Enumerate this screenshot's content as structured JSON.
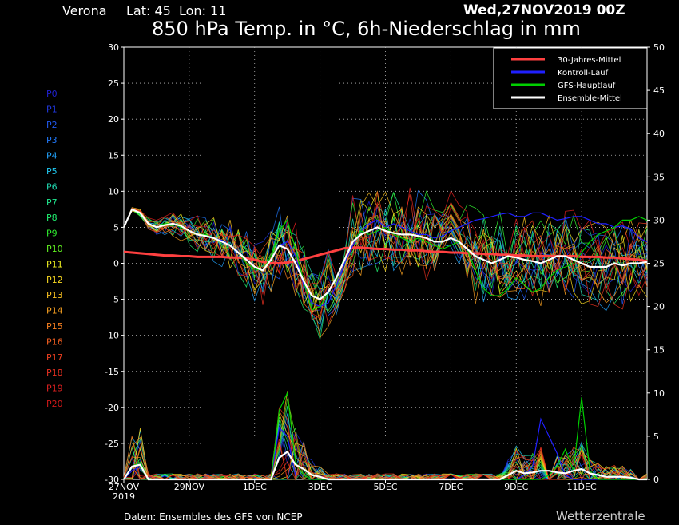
{
  "header": {
    "location": "Verona",
    "coords": "Lat: 45  Lon: 11",
    "run": "Wed,27NOV2019 00Z",
    "title": "850 hPa Temp. in °C, 6h-Niederschlag in mm"
  },
  "footer": {
    "source": "Daten: Ensembles des GFS von NCEP",
    "brand": "Wetterzentrale"
  },
  "members": [
    "P0",
    "P1",
    "P2",
    "P3",
    "P4",
    "P5",
    "P6",
    "P7",
    "P8",
    "P9",
    "P10",
    "P11",
    "P12",
    "P13",
    "P14",
    "P15",
    "P16",
    "P17",
    "P18",
    "P19",
    "P20"
  ],
  "member_colors": [
    "#2020d0",
    "#2038e0",
    "#2058f0",
    "#2078f8",
    "#20a0f8",
    "#20c8f0",
    "#20d8b0",
    "#20e890",
    "#20f070",
    "#30f030",
    "#60f020",
    "#f0f020",
    "#f8d820",
    "#f8c020",
    "#f8a020",
    "#f88020",
    "#f86020",
    "#f04020",
    "#e83020",
    "#e02020",
    "#d01818"
  ],
  "colors": {
    "climatology": "#ff4040",
    "control": "#2020ff",
    "gfs_main": "#00d000",
    "ensemble_mean": "#ffffff"
  },
  "chart_data": {
    "type": "line",
    "title": "850 hPa Temp. in °C, 6h-Niederschlag in mm",
    "x_tick_labels": [
      "27NOV",
      "29NOV",
      "1DEC",
      "3DEC",
      "5DEC",
      "7DEC",
      "9DEC",
      "11DEC"
    ],
    "x_tick_year": "2019",
    "ylim_left": [
      -30,
      30
    ],
    "ylim_right": [
      0,
      50
    ],
    "y_left_ticks": [
      30,
      25,
      20,
      15,
      10,
      5,
      0,
      -5,
      -10,
      -15,
      -20,
      -25,
      -30
    ],
    "y_right_ticks": [
      50,
      45,
      40,
      35,
      30,
      25,
      20,
      15,
      10,
      5,
      0
    ],
    "grid": true,
    "legend": {
      "position": "top-right",
      "entries": [
        "30-Jahres-Mittel",
        "Kontroll-Lauf",
        "GFS-Hauptlauf",
        "Ensemble-Mittel"
      ]
    },
    "x_days": [
      0,
      0.25,
      0.5,
      0.75,
      1,
      1.25,
      1.5,
      1.75,
      2,
      2.25,
      2.5,
      2.75,
      3,
      3.25,
      3.5,
      3.75,
      4,
      4.25,
      4.5,
      4.75,
      5,
      5.25,
      5.5,
      5.75,
      6,
      6.25,
      6.5,
      6.75,
      7,
      7.25,
      7.5,
      7.75,
      8,
      8.25,
      8.5,
      8.75,
      9,
      9.25,
      9.5,
      9.75,
      10,
      10.25,
      10.5,
      10.75,
      11,
      11.25,
      11.5,
      11.75,
      12,
      12.25,
      12.5,
      12.75,
      13,
      13.25,
      13.5,
      13.75,
      14,
      14.25,
      14.5,
      14.75,
      15,
      15.25,
      15.5,
      15.75,
      16
    ],
    "series": [
      {
        "name": "30-Jahres-Mittel",
        "values": [
          1.6,
          1.5,
          1.4,
          1.3,
          1.2,
          1.1,
          1.1,
          1.0,
          1.0,
          0.9,
          0.9,
          0.9,
          0.9,
          0.8,
          0.8,
          0.7,
          0.5,
          0.2,
          0.0,
          0.0,
          0.1,
          0.3,
          0.6,
          0.9,
          1.2,
          1.5,
          1.8,
          2.1,
          2.2,
          2.2,
          2.1,
          2.0,
          2.0,
          1.9,
          1.9,
          1.8,
          1.8,
          1.7,
          1.6,
          1.6,
          1.5,
          1.5,
          1.4,
          1.4,
          1.3,
          1.3,
          1.2,
          1.2,
          1.1,
          1.1,
          1.0,
          1.0,
          1.0,
          1.0,
          1.0,
          1.0,
          0.9,
          0.9,
          0.9,
          0.8,
          0.8,
          0.7,
          0.6,
          0.5,
          0.3
        ]
      },
      {
        "name": "Kontroll-Lauf",
        "values": [
          5.0,
          7.5,
          7.0,
          5.5,
          5.0,
          5.3,
          5.5,
          5.2,
          4.5,
          4.0,
          3.8,
          3.5,
          3.2,
          2.5,
          1.5,
          0.5,
          -0.5,
          -1.0,
          0.5,
          2.5,
          3.0,
          1.0,
          -3.0,
          -5.5,
          -6.0,
          -5.5,
          -3.0,
          0.0,
          2.5,
          4.5,
          5.5,
          6.0,
          5.0,
          5.5,
          5.0,
          4.5,
          4.0,
          4.0,
          3.5,
          3.8,
          4.5,
          5.0,
          5.5,
          6.0,
          6.2,
          6.5,
          6.8,
          7.0,
          6.5,
          6.5,
          7.0,
          7.0,
          6.5,
          6.0,
          6.2,
          6.5,
          6.5,
          6.0,
          5.5,
          5.5,
          5.0,
          5.2,
          4.8,
          3.5,
          3.0
        ]
      },
      {
        "name": "GFS-Hauptlauf",
        "values": [
          5.0,
          7.5,
          7.0,
          5.5,
          5.0,
          5.5,
          5.5,
          5.0,
          4.5,
          4.0,
          4.0,
          3.5,
          3.0,
          2.5,
          1.5,
          0.0,
          -0.8,
          -1.0,
          1.0,
          4.5,
          6.0,
          2.0,
          -2.5,
          -6.5,
          -6.0,
          -4.0,
          -2.0,
          0.5,
          3.0,
          4.5,
          4.0,
          4.5,
          5.0,
          4.0,
          3.5,
          3.0,
          3.5,
          3.0,
          2.5,
          2.0,
          2.5,
          3.0,
          2.0,
          -1.0,
          -3.5,
          -4.5,
          -4.5,
          -3.5,
          -2.0,
          -3.0,
          -4.0,
          -3.5,
          -2.0,
          -1.0,
          -0.5,
          0.0,
          1.5,
          3.0,
          4.0,
          4.5,
          5.0,
          6.0,
          6.0,
          6.5,
          6.0
        ]
      },
      {
        "name": "Ensemble-Mittel",
        "values": [
          5.0,
          7.5,
          7.0,
          5.5,
          5.0,
          5.3,
          5.5,
          5.2,
          4.5,
          4.0,
          3.8,
          3.5,
          3.0,
          2.5,
          1.5,
          0.5,
          -0.5,
          -1.0,
          0.5,
          2.5,
          2.0,
          0.0,
          -2.5,
          -4.5,
          -5.0,
          -4.0,
          -2.0,
          0.5,
          3.0,
          4.0,
          4.5,
          5.0,
          4.5,
          4.2,
          4.0,
          4.0,
          3.8,
          3.5,
          3.0,
          3.0,
          3.5,
          3.0,
          2.0,
          1.0,
          0.5,
          0.0,
          0.5,
          1.0,
          0.8,
          0.5,
          0.3,
          0.0,
          0.5,
          1.0,
          1.0,
          0.5,
          0.0,
          -0.5,
          -0.5,
          -0.5,
          0.0,
          -0.3,
          0.0,
          0.0,
          0.2
        ]
      }
    ],
    "precipitation_mm": [
      {
        "name": "Kontroll-Lauf",
        "values": [
          0,
          1.0,
          1.5,
          0,
          0,
          0,
          0,
          0,
          0,
          0,
          0,
          0,
          0,
          0,
          0,
          0,
          0,
          0,
          0,
          6.0,
          5.0,
          0.5,
          0.5,
          0,
          0,
          0,
          0,
          0,
          0,
          0,
          0,
          0,
          0,
          0,
          0,
          0,
          0,
          0,
          0,
          0,
          0,
          0,
          0,
          0,
          0,
          0,
          0,
          0,
          0,
          0.5,
          1.5,
          7.0,
          5.0,
          3.0,
          0.5,
          0,
          0,
          0,
          0,
          0,
          0,
          0,
          0,
          0,
          0
        ]
      },
      {
        "name": "GFS-Hauptlauf",
        "values": [
          0,
          1.5,
          2.0,
          0,
          0,
          0,
          0,
          0,
          0,
          0,
          0,
          0,
          0,
          0,
          0,
          0,
          0,
          0,
          0,
          8.0,
          10.0,
          2.0,
          0.5,
          0,
          0,
          0,
          0,
          0,
          0,
          0,
          0,
          0,
          0,
          0,
          0,
          0,
          0,
          0,
          0,
          0,
          0,
          0,
          0,
          0,
          0,
          0,
          0,
          0,
          0,
          0,
          0,
          0,
          0.5,
          1.5,
          3.5,
          1.0,
          9.5,
          1.0,
          0,
          0,
          0,
          0,
          0,
          0,
          0
        ]
      },
      {
        "name": "Ensemble-Mittel",
        "values": [
          0,
          1.5,
          1.7,
          0,
          0,
          0,
          0,
          0,
          0,
          0,
          0,
          0,
          0,
          0,
          0,
          0,
          0,
          0,
          0,
          2.5,
          3.2,
          1.7,
          1.2,
          0.5,
          0.3,
          0,
          0,
          0,
          0,
          0,
          0,
          0,
          0,
          0,
          0,
          0,
          0,
          0,
          0,
          0,
          0,
          0,
          0,
          0,
          0,
          0,
          0,
          0.5,
          1.0,
          0.7,
          0.8,
          1.0,
          1.0,
          0.8,
          0.7,
          1.0,
          1.2,
          0.7,
          0.5,
          0.3,
          0.3,
          0.3,
          0.2,
          0,
          0
        ]
      }
    ]
  }
}
